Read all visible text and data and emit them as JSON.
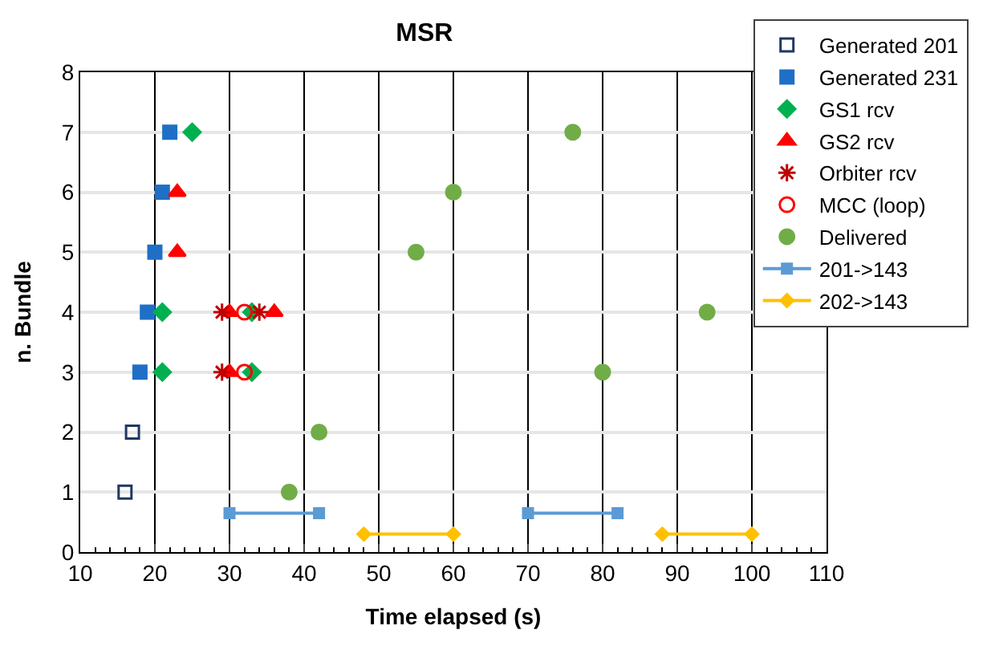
{
  "chart_data": {
    "type": "scatter",
    "title": "MSR",
    "xlabel": "Time elapsed (s)",
    "ylabel": "n. Bundle",
    "xlim": [
      10,
      110
    ],
    "xticks": [
      10,
      20,
      30,
      40,
      50,
      60,
      70,
      80,
      90,
      100,
      110
    ],
    "ylim": [
      0,
      8
    ],
    "yticks": [
      0,
      1,
      2,
      3,
      4,
      5,
      6,
      7,
      8
    ],
    "grid": true,
    "legend": "top right",
    "series": [
      {
        "name": "Generated 201",
        "color": "#1f3864",
        "marker": "square-open",
        "x": [
          16,
          17
        ],
        "values": [
          1,
          2
        ]
      },
      {
        "name": "Generated 231",
        "color": "#1f6fc6",
        "marker": "square",
        "x": [
          18,
          19,
          20,
          21,
          22
        ],
        "values": [
          3,
          4,
          5,
          6,
          7
        ]
      },
      {
        "name": "GS1 rcv",
        "color": "#00b050",
        "marker": "diamond",
        "x": [
          21,
          21,
          25,
          33,
          33
        ],
        "values": [
          3,
          4,
          7,
          3,
          4
        ]
      },
      {
        "name": "GS2 rcv",
        "color": "#ff0000",
        "marker": "triangle",
        "x": [
          23,
          23,
          30,
          30,
          36
        ],
        "values": [
          5,
          6,
          3,
          4,
          4
        ]
      },
      {
        "name": "Orbiter rcv",
        "color": "#c00000",
        "marker": "cross",
        "x": [
          29,
          29,
          34
        ],
        "values": [
          3,
          4,
          4
        ]
      },
      {
        "name": "MCC (loop)",
        "color": "#ff0000",
        "marker": "circle-open",
        "x": [
          32,
          32
        ],
        "values": [
          3,
          4
        ]
      },
      {
        "name": "Delivered",
        "color": "#70ad47",
        "marker": "circle",
        "x": [
          38,
          42,
          55,
          60,
          76,
          80,
          94
        ],
        "values": [
          1,
          2,
          5,
          6,
          7,
          3,
          4
        ]
      },
      {
        "name": "201->143",
        "type": "line",
        "color": "#5b9bd5",
        "marker": "square",
        "x": [
          30,
          42,
          null,
          70,
          82
        ],
        "values": [
          0.65,
          0.65,
          null,
          0.65,
          0.65
        ]
      },
      {
        "name": "202->143",
        "type": "line",
        "color": "#ffc000",
        "marker": "diamond",
        "x": [
          48,
          60,
          null,
          88,
          100
        ],
        "values": [
          0.3,
          0.3,
          null,
          0.3,
          0.3
        ]
      }
    ]
  }
}
